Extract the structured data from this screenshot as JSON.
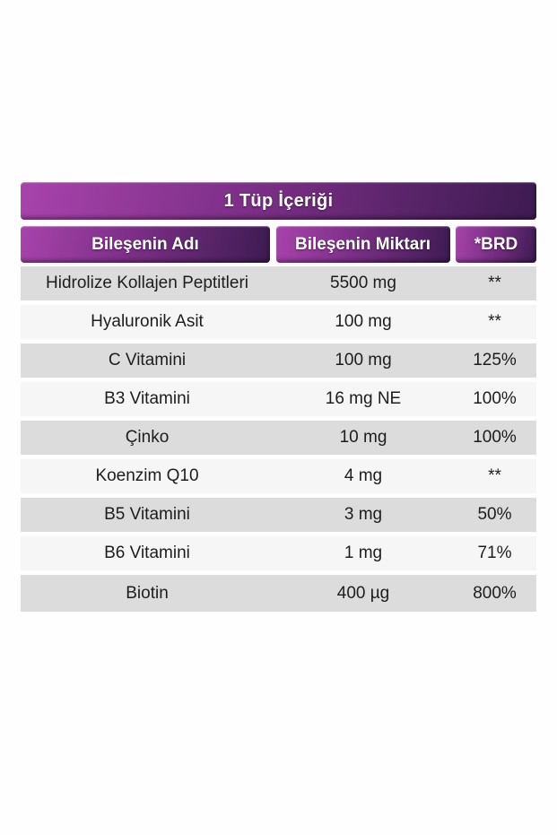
{
  "table": {
    "title": "1 Tüp İçeriği",
    "columns": [
      "Bileşenin Adı",
      "Bileşenin Miktarı",
      "*BRD"
    ],
    "rows": [
      {
        "name": "Hidrolize Kollajen Peptitleri",
        "amount": "5500 mg",
        "brd": "**"
      },
      {
        "name": "Hyaluronik Asit",
        "amount": "100 mg",
        "brd": "**"
      },
      {
        "name": "C Vitamini",
        "amount": "100 mg",
        "brd": "125%"
      },
      {
        "name": "B3 Vitamini",
        "amount": "16 mg NE",
        "brd": "100%"
      },
      {
        "name": "Çinko",
        "amount": "10 mg",
        "brd": "100%"
      },
      {
        "name": "Koenzim Q10",
        "amount": "4 mg",
        "brd": "**"
      },
      {
        "name": "B5 Vitamini",
        "amount": "3 mg",
        "brd": "50%"
      },
      {
        "name": "B6 Vitamini",
        "amount": "1 mg",
        "brd": "71%"
      },
      {
        "name": "Biotin",
        "amount": "400 µg",
        "brd": "800%"
      }
    ],
    "colors": {
      "gradient_start": "#a843ac",
      "gradient_end": "#3d1b51",
      "row_gray": "#dcdcdc",
      "row_light": "#f6f6f6",
      "header_text": "#ffffff",
      "body_text": "#1d1d1d"
    }
  }
}
